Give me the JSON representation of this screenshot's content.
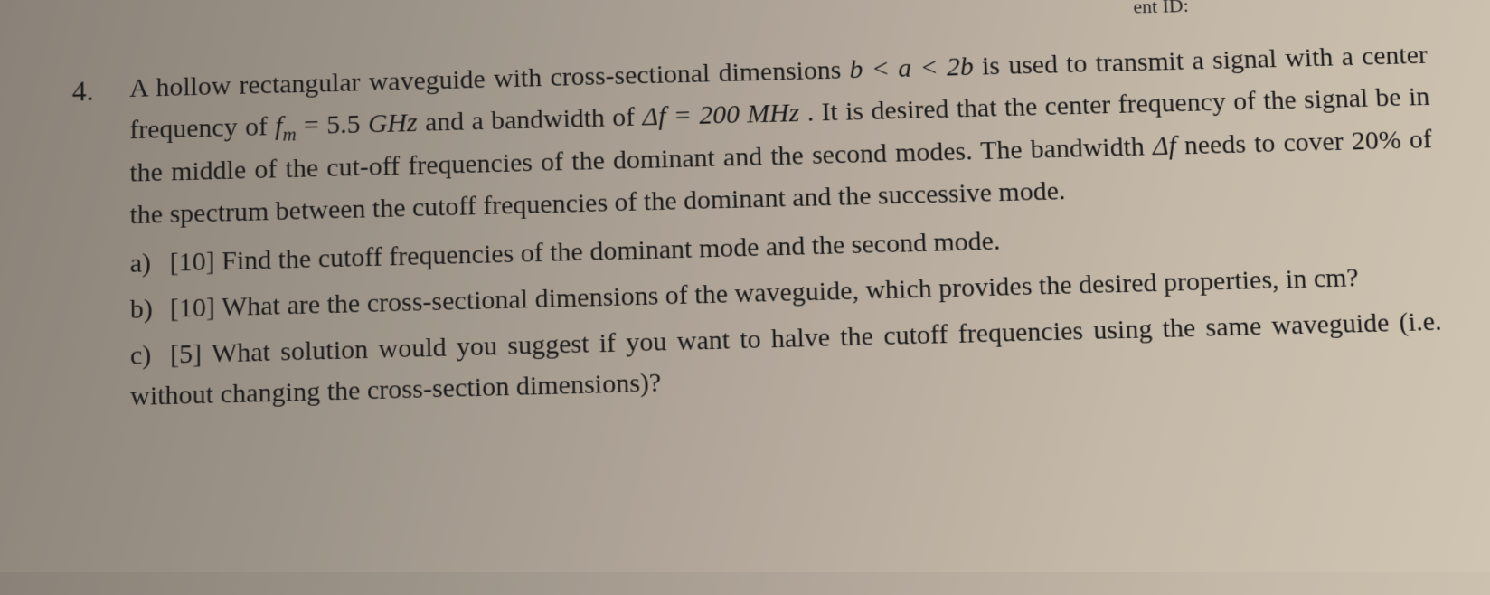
{
  "header": {
    "fragment": "ent ID:"
  },
  "problem": {
    "number": "4.",
    "intro_part1": "A hollow rectangular waveguide with cross-sectional dimensions ",
    "dim_condition": "b < a < 2b",
    "intro_part2": "  is used to transmit a signal     with     a     center     frequency     of     ",
    "fm_var": "f",
    "fm_sub": "m",
    "fm_eq": " = 5.5 ",
    "fm_unit": "GHz",
    "intro_part3": "     and     a     bandwidth     of ",
    "deltaf": "Δf = 200 MHz",
    "intro_part4": " . It is desired that the center frequency of the signal be in the middle of the cut-off frequencies of the dominant and the second modes. The bandwidth ",
    "deltaf_sym": "Δf",
    "intro_part5": " needs to cover 20% of the spectrum between the cutoff frequencies of the dominant and the successive mode.",
    "parts": {
      "a": {
        "label": "a)",
        "points": "[10]",
        "text": " Find the cutoff frequencies of the dominant mode and the second mode."
      },
      "b": {
        "label": "b)",
        "points": "[10]",
        "text": " What are the cross-sectional dimensions of the waveguide, which provides the desired properties, in cm?"
      },
      "c": {
        "label": "c)",
        "points": "[5]",
        "text": " What solution would you suggest if you want to halve the cutoff frequencies using the same waveguide (i.e. without changing the cross-section dimensions)?"
      }
    }
  },
  "style": {
    "background_gradient": [
      "#8a8278",
      "#9c9388",
      "#b0a598",
      "#c4b8a8",
      "#d0c4b2"
    ],
    "text_color": "#1a1a1a",
    "body_fontsize": 30,
    "number_fontsize": 32,
    "font_family": "Georgia, Times New Roman, serif",
    "perspective_rotateX": 4,
    "perspective_rotateZ": -1.5,
    "line_height": 1.55
  }
}
